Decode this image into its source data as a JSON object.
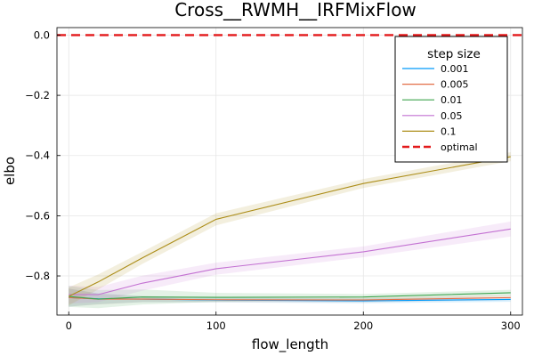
{
  "chart_data": {
    "type": "line",
    "title": "Cross__RWMH__IRFMixFlow",
    "xlabel": "flow_length",
    "ylabel": "elbo",
    "xlim": [
      -8,
      308
    ],
    "ylim": [
      -0.93,
      0.025
    ],
    "x_ticks": [
      0,
      100,
      200,
      300
    ],
    "y_ticks": [
      0.0,
      -0.2,
      -0.4,
      -0.6,
      -0.8
    ],
    "x_tick_labels": [
      "0",
      "100",
      "200",
      "300"
    ],
    "y_tick_labels": [
      "0.0",
      "−0.2",
      "−0.4",
      "−0.6",
      "−0.8"
    ],
    "grid": true,
    "legend": {
      "title": "step size",
      "position": "top-right"
    },
    "x": [
      0,
      20,
      50,
      100,
      200,
      300
    ],
    "series": [
      {
        "name": "0.001",
        "color": "#009AFA",
        "values": [
          -0.872,
          -0.876,
          -0.877,
          -0.88,
          -0.883,
          -0.878
        ],
        "band": [
          0.03,
          0.018,
          0.01,
          0.008,
          0.008,
          0.008
        ]
      },
      {
        "name": "0.005",
        "color": "#E36F47",
        "values": [
          -0.872,
          -0.877,
          -0.877,
          -0.879,
          -0.88,
          -0.872
        ],
        "band": [
          0.03,
          0.018,
          0.01,
          0.008,
          0.008,
          0.008
        ]
      },
      {
        "name": "0.01",
        "color": "#3EA44E",
        "values": [
          -0.868,
          -0.877,
          -0.87,
          -0.871,
          -0.87,
          -0.856
        ],
        "band": [
          0.035,
          0.03,
          0.025,
          0.015,
          0.01,
          0.01
        ]
      },
      {
        "name": "0.05",
        "color": "#C371D2",
        "values": [
          -0.862,
          -0.862,
          -0.824,
          -0.776,
          -0.72,
          -0.644
        ],
        "band": [
          0.03,
          0.025,
          0.025,
          0.02,
          0.018,
          0.025
        ]
      },
      {
        "name": "0.1",
        "color": "#AC8D18",
        "values": [
          -0.868,
          -0.82,
          -0.74,
          -0.612,
          -0.493,
          -0.404
        ],
        "band": [
          0.03,
          0.025,
          0.02,
          0.02,
          0.015,
          0.015
        ]
      }
    ],
    "reference_line": {
      "name": "optimal",
      "y": 0.0,
      "color": "#E31A1C",
      "style": "dashed"
    }
  }
}
